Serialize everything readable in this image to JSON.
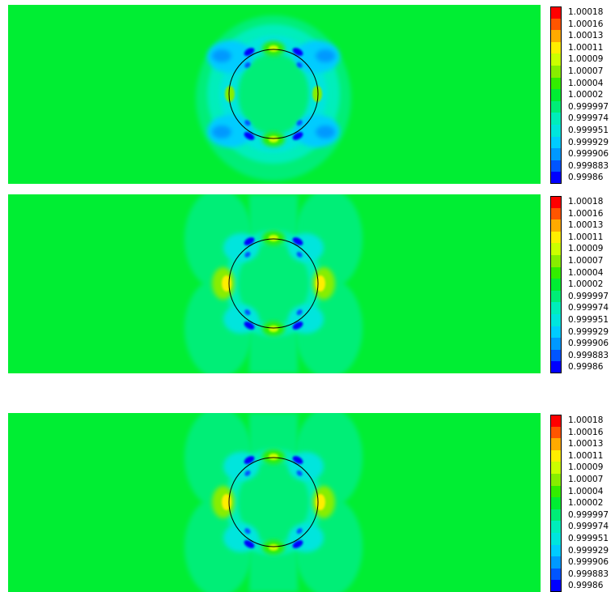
{
  "chart_data": [
    {
      "type": "heatmap",
      "title": "",
      "xlabel": "",
      "ylabel": "",
      "background_color": "#00ee33",
      "colorbar": {
        "levels": [
          "1.00018",
          "1.00016",
          "1.00013",
          "1.00011",
          "1.00009",
          "1.00007",
          "1.00004",
          "1.00002",
          "0.999997",
          "0.999974",
          "0.999951",
          "0.999929",
          "0.999906",
          "0.999883",
          "0.99986"
        ],
        "colors": [
          "#ff0000",
          "#ff5500",
          "#ffaa00",
          "#ffee00",
          "#ccff00",
          "#88ee00",
          "#33ee00",
          "#00ee33",
          "#00ee77",
          "#00eebb",
          "#00e5dd",
          "#00ccff",
          "#0099ff",
          "#0055ff",
          "#0000ff"
        ]
      },
      "pattern": "ring"
    },
    {
      "type": "heatmap",
      "title": "",
      "xlabel": "",
      "ylabel": "",
      "background_color": "#00ee33",
      "colorbar": {
        "levels": [
          "1.00018",
          "1.00016",
          "1.00013",
          "1.00011",
          "1.00009",
          "1.00007",
          "1.00004",
          "1.00002",
          "0.999997",
          "0.999974",
          "0.999951",
          "0.999929",
          "0.999906",
          "0.999883",
          "0.99986"
        ],
        "colors": [
          "#ff0000",
          "#ff5500",
          "#ffaa00",
          "#ffee00",
          "#ccff00",
          "#88ee00",
          "#33ee00",
          "#00ee33",
          "#00ee77",
          "#00eebb",
          "#00e5dd",
          "#00ccff",
          "#0099ff",
          "#0055ff",
          "#0000ff"
        ]
      },
      "pattern": "lobes"
    },
    {
      "type": "heatmap",
      "title": "",
      "xlabel": "",
      "ylabel": "",
      "background_color": "#00ee33",
      "colorbar": {
        "levels": [
          "1.00018",
          "1.00016",
          "1.00013",
          "1.00011",
          "1.00009",
          "1.00007",
          "1.00004",
          "1.00002",
          "0.999997",
          "0.999974",
          "0.999951",
          "0.999929",
          "0.999906",
          "0.999883",
          "0.99986"
        ],
        "colors": [
          "#ff0000",
          "#ff5500",
          "#ffaa00",
          "#ffee00",
          "#ccff00",
          "#88ee00",
          "#33ee00",
          "#00ee33",
          "#00ee77",
          "#00eebb",
          "#00e5dd",
          "#00ccff",
          "#0099ff",
          "#0055ff",
          "#0000ff"
        ]
      },
      "pattern": "lobes"
    }
  ]
}
